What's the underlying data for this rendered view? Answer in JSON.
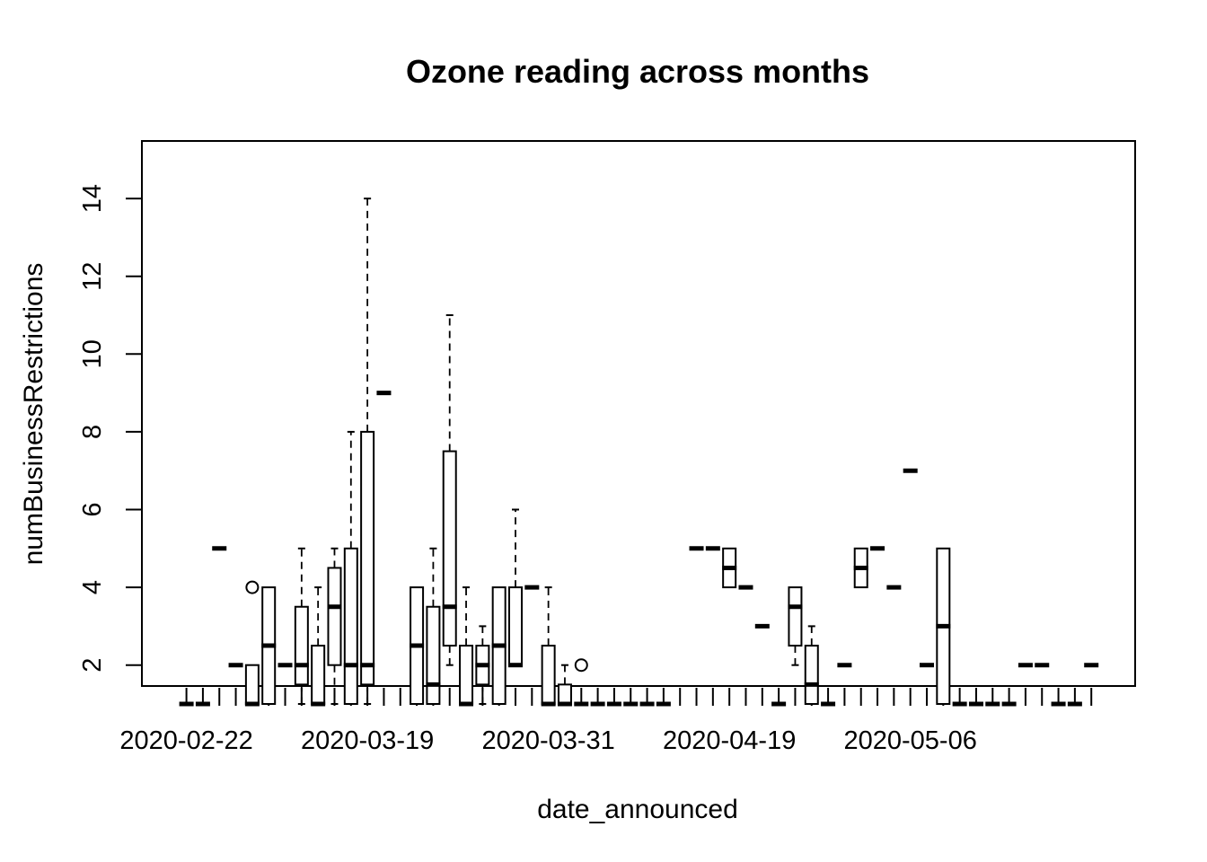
{
  "chart_data": {
    "type": "boxplot",
    "title": "Ozone reading across months",
    "xlabel": "date_announced",
    "ylabel": "numBusinessRestrictions",
    "ylim": [
      0.5,
      14.5
    ],
    "yticks": [
      2,
      4,
      6,
      8,
      10,
      12,
      14
    ],
    "x_tick_labels": [
      {
        "group": 1,
        "label": "2020-02-22"
      },
      {
        "group": 12,
        "label": "2020-03-19"
      },
      {
        "group": 23,
        "label": "2020-03-31"
      },
      {
        "group": 34,
        "label": "2020-04-19"
      },
      {
        "group": 45,
        "label": "2020-05-06"
      }
    ],
    "boxes": [
      {
        "group": 1,
        "min": 1,
        "q1": 1,
        "median": 1,
        "q3": 1,
        "max": 1,
        "outliers": []
      },
      {
        "group": 2,
        "min": 1,
        "q1": 1,
        "median": 1,
        "q3": 1,
        "max": 1,
        "outliers": []
      },
      {
        "group": 3,
        "min": 5,
        "q1": 5,
        "median": 5,
        "q3": 5,
        "max": 5,
        "outliers": []
      },
      {
        "group": 4,
        "min": 2,
        "q1": 2,
        "median": 2,
        "q3": 2,
        "max": 2,
        "outliers": []
      },
      {
        "group": 5,
        "min": 1,
        "q1": 1,
        "median": 1,
        "q3": 2,
        "max": 2,
        "outliers": [
          4
        ]
      },
      {
        "group": 6,
        "min": 1,
        "q1": 1,
        "median": 2.5,
        "q3": 4,
        "max": 4,
        "outliers": []
      },
      {
        "group": 7,
        "min": 2,
        "q1": 2,
        "median": 2,
        "q3": 2,
        "max": 2,
        "outliers": []
      },
      {
        "group": 8,
        "min": 1,
        "q1": 1.5,
        "median": 2,
        "q3": 3.5,
        "max": 5,
        "outliers": []
      },
      {
        "group": 9,
        "min": 1,
        "q1": 1,
        "median": 1,
        "q3": 2.5,
        "max": 4,
        "outliers": []
      },
      {
        "group": 10,
        "min": 1,
        "q1": 2,
        "median": 3.5,
        "q3": 4.5,
        "max": 5,
        "outliers": []
      },
      {
        "group": 11,
        "min": 1,
        "q1": 1,
        "median": 2,
        "q3": 5,
        "max": 8,
        "outliers": []
      },
      {
        "group": 12,
        "min": 1,
        "q1": 1.5,
        "median": 2,
        "q3": 8,
        "max": 14,
        "outliers": []
      },
      {
        "group": 13,
        "min": 9,
        "q1": 9,
        "median": 9,
        "q3": 9,
        "max": 9,
        "outliers": []
      },
      {
        "group": 15,
        "min": 1,
        "q1": 1,
        "median": 2.5,
        "q3": 4,
        "max": 4,
        "outliers": []
      },
      {
        "group": 16,
        "min": 1,
        "q1": 1,
        "median": 1.5,
        "q3": 3.5,
        "max": 5,
        "outliers": []
      },
      {
        "group": 17,
        "min": 2,
        "q1": 2.5,
        "median": 3.5,
        "q3": 7.5,
        "max": 11,
        "outliers": []
      },
      {
        "group": 18,
        "min": 1,
        "q1": 1,
        "median": 1,
        "q3": 2.5,
        "max": 4,
        "outliers": []
      },
      {
        "group": 19,
        "min": 1,
        "q1": 1.5,
        "median": 2,
        "q3": 2.5,
        "max": 3,
        "outliers": []
      },
      {
        "group": 20,
        "min": 1,
        "q1": 1,
        "median": 2.5,
        "q3": 4,
        "max": 4,
        "outliers": []
      },
      {
        "group": 21,
        "min": 2,
        "q1": 2,
        "median": 2,
        "q3": 4,
        "max": 6,
        "outliers": []
      },
      {
        "group": 22,
        "min": 4,
        "q1": 4,
        "median": 4,
        "q3": 4,
        "max": 4,
        "outliers": []
      },
      {
        "group": 23,
        "min": 1,
        "q1": 1,
        "median": 1,
        "q3": 2.5,
        "max": 4,
        "outliers": []
      },
      {
        "group": 24,
        "min": 1,
        "q1": 1,
        "median": 1,
        "q3": 1.5,
        "max": 2,
        "outliers": []
      },
      {
        "group": 25,
        "min": 1,
        "q1": 1,
        "median": 1,
        "q3": 1,
        "max": 1,
        "outliers": [
          2
        ]
      },
      {
        "group": 26,
        "min": 1,
        "q1": 1,
        "median": 1,
        "q3": 1,
        "max": 1,
        "outliers": []
      },
      {
        "group": 27,
        "min": 1,
        "q1": 1,
        "median": 1,
        "q3": 1,
        "max": 1,
        "outliers": []
      },
      {
        "group": 28,
        "min": 1,
        "q1": 1,
        "median": 1,
        "q3": 1,
        "max": 1,
        "outliers": []
      },
      {
        "group": 29,
        "min": 1,
        "q1": 1,
        "median": 1,
        "q3": 1,
        "max": 1,
        "outliers": []
      },
      {
        "group": 30,
        "min": 1,
        "q1": 1,
        "median": 1,
        "q3": 1,
        "max": 1,
        "outliers": []
      },
      {
        "group": 32,
        "min": 5,
        "q1": 5,
        "median": 5,
        "q3": 5,
        "max": 5,
        "outliers": []
      },
      {
        "group": 33,
        "min": 5,
        "q1": 5,
        "median": 5,
        "q3": 5,
        "max": 5,
        "outliers": []
      },
      {
        "group": 34,
        "min": 4,
        "q1": 4,
        "median": 4.5,
        "q3": 5,
        "max": 5,
        "outliers": []
      },
      {
        "group": 35,
        "min": 4,
        "q1": 4,
        "median": 4,
        "q3": 4,
        "max": 4,
        "outliers": []
      },
      {
        "group": 36,
        "min": 3,
        "q1": 3,
        "median": 3,
        "q3": 3,
        "max": 3,
        "outliers": []
      },
      {
        "group": 37,
        "min": 1,
        "q1": 1,
        "median": 1,
        "q3": 1,
        "max": 1,
        "outliers": []
      },
      {
        "group": 38,
        "min": 2,
        "q1": 2.5,
        "median": 3.5,
        "q3": 4,
        "max": 4,
        "outliers": []
      },
      {
        "group": 39,
        "min": 1,
        "q1": 1,
        "median": 1.5,
        "q3": 2.5,
        "max": 3,
        "outliers": []
      },
      {
        "group": 40,
        "min": 1,
        "q1": 1,
        "median": 1,
        "q3": 1,
        "max": 1,
        "outliers": []
      },
      {
        "group": 41,
        "min": 2,
        "q1": 2,
        "median": 2,
        "q3": 2,
        "max": 2,
        "outliers": []
      },
      {
        "group": 42,
        "min": 4,
        "q1": 4,
        "median": 4.5,
        "q3": 5,
        "max": 5,
        "outliers": []
      },
      {
        "group": 43,
        "min": 5,
        "q1": 5,
        "median": 5,
        "q3": 5,
        "max": 5,
        "outliers": []
      },
      {
        "group": 44,
        "min": 4,
        "q1": 4,
        "median": 4,
        "q3": 4,
        "max": 4,
        "outliers": []
      },
      {
        "group": 45,
        "min": 7,
        "q1": 7,
        "median": 7,
        "q3": 7,
        "max": 7,
        "outliers": []
      },
      {
        "group": 46,
        "min": 2,
        "q1": 2,
        "median": 2,
        "q3": 2,
        "max": 2,
        "outliers": []
      },
      {
        "group": 47,
        "min": 1,
        "q1": 1,
        "median": 3,
        "q3": 5,
        "max": 5,
        "outliers": []
      },
      {
        "group": 48,
        "min": 1,
        "q1": 1,
        "median": 1,
        "q3": 1,
        "max": 1,
        "outliers": []
      },
      {
        "group": 49,
        "min": 1,
        "q1": 1,
        "median": 1,
        "q3": 1,
        "max": 1,
        "outliers": []
      },
      {
        "group": 50,
        "min": 1,
        "q1": 1,
        "median": 1,
        "q3": 1,
        "max": 1,
        "outliers": []
      },
      {
        "group": 51,
        "min": 1,
        "q1": 1,
        "median": 1,
        "q3": 1,
        "max": 1,
        "outliers": []
      },
      {
        "group": 52,
        "min": 2,
        "q1": 2,
        "median": 2,
        "q3": 2,
        "max": 2,
        "outliers": []
      },
      {
        "group": 53,
        "min": 2,
        "q1": 2,
        "median": 2,
        "q3": 2,
        "max": 2,
        "outliers": []
      },
      {
        "group": 54,
        "min": 1,
        "q1": 1,
        "median": 1,
        "q3": 1,
        "max": 1,
        "outliers": []
      },
      {
        "group": 55,
        "min": 1,
        "q1": 1,
        "median": 1,
        "q3": 1,
        "max": 1,
        "outliers": []
      },
      {
        "group": 56,
        "min": 2,
        "q1": 2,
        "median": 2,
        "q3": 2,
        "max": 2,
        "outliers": []
      }
    ],
    "n_groups": 56,
    "grid": false,
    "legend": "none"
  }
}
